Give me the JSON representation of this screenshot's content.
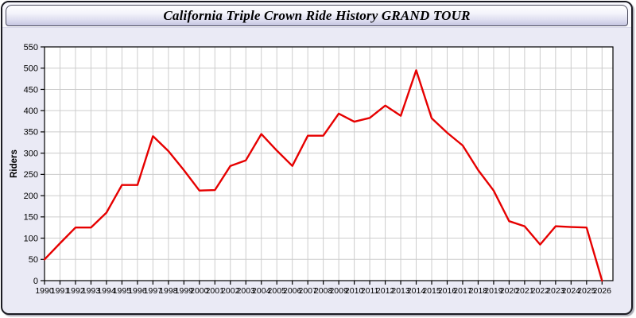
{
  "window": {
    "title": "California Triple Crown Ride History GRAND TOUR"
  },
  "colors": {
    "line": "#E60000",
    "window_background": "#EAEAF5",
    "titlebar_gradient_top": "#FFFFFF",
    "titlebar_gradient_bottom": "#C5C5E1",
    "plot_background": "#FFFFFF",
    "gridline": "#CCCCCC",
    "axis": "#000000"
  },
  "chart_data": {
    "type": "line",
    "title": "California Triple Crown Ride History GRAND TOUR",
    "xlabel": "",
    "ylabel": "Riders",
    "ylim": [
      0,
      550
    ],
    "ytick_step": 50,
    "yticks": [
      0,
      50,
      100,
      150,
      200,
      250,
      300,
      350,
      400,
      450,
      500,
      550
    ],
    "grid": true,
    "legend_position": "none",
    "line_color": "#E60000",
    "x": [
      1990,
      1991,
      1992,
      1993,
      1994,
      1995,
      1996,
      1997,
      1998,
      1999,
      2000,
      2001,
      2002,
      2003,
      2004,
      2005,
      2006,
      2007,
      2008,
      2009,
      2010,
      2011,
      2012,
      2013,
      2014,
      2015,
      2016,
      2017,
      2018,
      2019,
      2020,
      2021,
      2022,
      2023,
      2024,
      2025,
      2026
    ],
    "series": [
      {
        "name": "Riders",
        "values": [
          50,
          88,
          125,
          125,
          160,
          225,
          225,
          340,
          305,
          260,
          212,
          213,
          270,
          283,
          345,
          306,
          270,
          341,
          341,
          393,
          374,
          383,
          412,
          388,
          495,
          382,
          348,
          318,
          260,
          212,
          140,
          128,
          85,
          128,
          126,
          125,
          0
        ]
      }
    ]
  }
}
